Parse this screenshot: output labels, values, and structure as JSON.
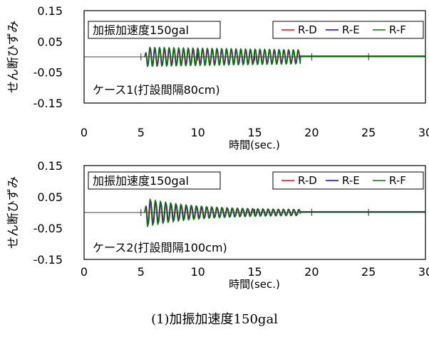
{
  "figure_caption": "(1)加振加速度150gal",
  "chart_data": [
    {
      "type": "line",
      "title": "",
      "xlabel": "時間(sec.)",
      "ylabel": "せん断ひずみ",
      "xlim": [
        0,
        30
      ],
      "ylim": [
        -0.15,
        0.15
      ],
      "x_ticks": [
        "0",
        "5",
        "10",
        "15",
        "20",
        "25",
        "30"
      ],
      "y_ticks": [
        "0.15",
        "0.05",
        "-0.05",
        "-0.15"
      ],
      "y_tick_values": [
        0.15,
        0.05,
        -0.05,
        -0.15
      ],
      "x_tick_values": [
        0,
        5,
        10,
        15,
        20,
        25,
        30
      ],
      "grid": false,
      "legend_position": "top-right",
      "annotation_box": "加振加速度150gal",
      "annotation_note": "ケース1(打設間隔80cm)",
      "signal": {
        "start": 5.3,
        "end": 19.0,
        "period": 0.42,
        "amp_start": 0.03,
        "amp_end": 0.022
      },
      "series": [
        {
          "name": "R-D",
          "color": "#ff0000",
          "phase": 0.0,
          "amp_scale": 0.95
        },
        {
          "name": "R-E",
          "color": "#0000ff",
          "phase": 0.35,
          "amp_scale": 1.0
        },
        {
          "name": "R-F",
          "color": "#008000",
          "phase": 0.7,
          "amp_scale": 1.05
        }
      ]
    },
    {
      "type": "line",
      "title": "",
      "xlabel": "時間(sec.)",
      "ylabel": "せん断ひずみ",
      "xlim": [
        0,
        30
      ],
      "ylim": [
        -0.15,
        0.15
      ],
      "x_ticks": [
        "0",
        "5",
        "10",
        "15",
        "20",
        "25",
        "30"
      ],
      "y_ticks": [
        "0.15",
        "0.05",
        "-0.05",
        "-0.15"
      ],
      "y_tick_values": [
        0.15,
        0.05,
        -0.05,
        -0.15
      ],
      "x_tick_values": [
        0,
        5,
        10,
        15,
        20,
        25,
        30
      ],
      "grid": false,
      "legend_position": "top-right",
      "annotation_box": "加振加速度150gal",
      "annotation_note": "ケース2(打設間隔100cm)",
      "signal": {
        "start": 5.3,
        "end": 19.0,
        "period": 0.45,
        "amp_start": 0.035,
        "amp_end": 0.008
      },
      "series": [
        {
          "name": "R-D",
          "color": "#ff0000",
          "phase": 0.0,
          "amp_scale": 0.95
        },
        {
          "name": "R-E",
          "color": "#0000ff",
          "phase": 0.4,
          "amp_scale": 1.0
        },
        {
          "name": "R-F",
          "color": "#008000",
          "phase": 0.8,
          "amp_scale": 1.1
        }
      ]
    }
  ]
}
